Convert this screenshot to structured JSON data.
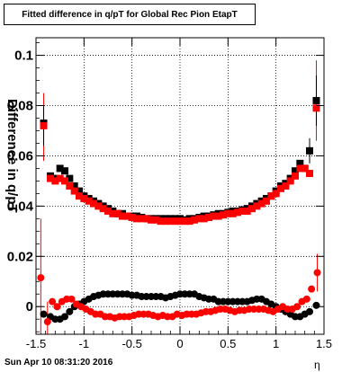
{
  "chart_data": {
    "type": "scatter",
    "title": "Fitted difference in q/pT for Global Rec Pion EtapT",
    "ylabel": "Difference in q/pT",
    "xlabel": "η",
    "xlim": [
      -1.5,
      1.5
    ],
    "ylim": [
      -0.011,
      0.107
    ],
    "grid": true,
    "x_ticks": [
      "-1.5",
      "-1",
      "-0.5",
      "0",
      "0.5",
      "1",
      "1.5"
    ],
    "y_ticks": [
      "0",
      "0.02",
      "0.04",
      "0.06",
      "0.08",
      "0.1"
    ],
    "series": [
      {
        "color": "#000000",
        "marker": "square",
        "points": [
          [
            -1.42,
            0.073
          ],
          [
            -1.35,
            0.052
          ],
          [
            -1.3,
            0.051
          ],
          [
            -1.25,
            0.055
          ],
          [
            -1.2,
            0.054
          ],
          [
            -1.15,
            0.051
          ],
          [
            -1.1,
            0.048
          ],
          [
            -1.05,
            0.046
          ],
          [
            -1.0,
            0.044
          ],
          [
            -0.95,
            0.043
          ],
          [
            -0.9,
            0.042
          ],
          [
            -0.85,
            0.041
          ],
          [
            -0.8,
            0.04
          ],
          [
            -0.75,
            0.039
          ],
          [
            -0.7,
            0.038
          ],
          [
            -0.65,
            0.037
          ],
          [
            -0.6,
            0.037
          ],
          [
            -0.55,
            0.036
          ],
          [
            -0.5,
            0.036
          ],
          [
            -0.45,
            0.036
          ],
          [
            -0.4,
            0.0355
          ],
          [
            -0.35,
            0.035
          ],
          [
            -0.3,
            0.035
          ],
          [
            -0.25,
            0.035
          ],
          [
            -0.2,
            0.035
          ],
          [
            -0.15,
            0.035
          ],
          [
            -0.1,
            0.035
          ],
          [
            -0.05,
            0.035
          ],
          [
            0.0,
            0.035
          ],
          [
            0.05,
            0.0345
          ],
          [
            0.1,
            0.035
          ],
          [
            0.15,
            0.035
          ],
          [
            0.2,
            0.0355
          ],
          [
            0.25,
            0.036
          ],
          [
            0.3,
            0.036
          ],
          [
            0.35,
            0.0365
          ],
          [
            0.4,
            0.037
          ],
          [
            0.45,
            0.037
          ],
          [
            0.5,
            0.0375
          ],
          [
            0.55,
            0.038
          ],
          [
            0.6,
            0.038
          ],
          [
            0.65,
            0.0385
          ],
          [
            0.7,
            0.039
          ],
          [
            0.75,
            0.04
          ],
          [
            0.8,
            0.041
          ],
          [
            0.85,
            0.042
          ],
          [
            0.9,
            0.043
          ],
          [
            0.95,
            0.044
          ],
          [
            1.0,
            0.046
          ],
          [
            1.05,
            0.048
          ],
          [
            1.1,
            0.049
          ],
          [
            1.15,
            0.051
          ],
          [
            1.2,
            0.054
          ],
          [
            1.25,
            0.057
          ],
          [
            1.3,
            0.055
          ],
          [
            1.35,
            0.062
          ],
          [
            1.42,
            0.082
          ]
        ]
      },
      {
        "color": "#ff0000",
        "marker": "square",
        "points": [
          [
            -1.42,
            0.072
          ],
          [
            -1.35,
            0.051
          ],
          [
            -1.3,
            0.05
          ],
          [
            -1.25,
            0.051
          ],
          [
            -1.2,
            0.05
          ],
          [
            -1.15,
            0.048
          ],
          [
            -1.1,
            0.046
          ],
          [
            -1.05,
            0.044
          ],
          [
            -1.0,
            0.043
          ],
          [
            -0.95,
            0.042
          ],
          [
            -0.9,
            0.041
          ],
          [
            -0.85,
            0.04
          ],
          [
            -0.8,
            0.039
          ],
          [
            -0.75,
            0.038
          ],
          [
            -0.7,
            0.037
          ],
          [
            -0.65,
            0.037
          ],
          [
            -0.6,
            0.036
          ],
          [
            -0.55,
            0.036
          ],
          [
            -0.5,
            0.0355
          ],
          [
            -0.45,
            0.035
          ],
          [
            -0.4,
            0.035
          ],
          [
            -0.35,
            0.035
          ],
          [
            -0.3,
            0.0345
          ],
          [
            -0.25,
            0.0345
          ],
          [
            -0.2,
            0.034
          ],
          [
            -0.15,
            0.034
          ],
          [
            -0.1,
            0.034
          ],
          [
            -0.05,
            0.034
          ],
          [
            0.0,
            0.034
          ],
          [
            0.05,
            0.034
          ],
          [
            0.1,
            0.034
          ],
          [
            0.15,
            0.0345
          ],
          [
            0.2,
            0.035
          ],
          [
            0.25,
            0.035
          ],
          [
            0.3,
            0.0355
          ],
          [
            0.35,
            0.036
          ],
          [
            0.4,
            0.036
          ],
          [
            0.45,
            0.0365
          ],
          [
            0.5,
            0.037
          ],
          [
            0.55,
            0.037
          ],
          [
            0.6,
            0.0375
          ],
          [
            0.65,
            0.038
          ],
          [
            0.7,
            0.038
          ],
          [
            0.75,
            0.039
          ],
          [
            0.8,
            0.04
          ],
          [
            0.85,
            0.041
          ],
          [
            0.9,
            0.042
          ],
          [
            0.95,
            0.044
          ],
          [
            1.0,
            0.045
          ],
          [
            1.05,
            0.047
          ],
          [
            1.1,
            0.048
          ],
          [
            1.15,
            0.05
          ],
          [
            1.2,
            0.052
          ],
          [
            1.25,
            0.055
          ],
          [
            1.3,
            0.055
          ],
          [
            1.35,
            0.053
          ],
          [
            1.42,
            0.079
          ]
        ]
      },
      {
        "color": "#000000",
        "marker": "circle",
        "points": [
          [
            -1.42,
            -0.003
          ],
          [
            -1.35,
            -0.004
          ],
          [
            -1.3,
            -0.005
          ],
          [
            -1.25,
            -0.005
          ],
          [
            -1.2,
            -0.004
          ],
          [
            -1.15,
            -0.002
          ],
          [
            -1.1,
            0.0
          ],
          [
            -1.05,
            0.001
          ],
          [
            -1.0,
            0.002
          ],
          [
            -0.95,
            0.003
          ],
          [
            -0.9,
            0.004
          ],
          [
            -0.85,
            0.0045
          ],
          [
            -0.8,
            0.005
          ],
          [
            -0.75,
            0.005
          ],
          [
            -0.7,
            0.005
          ],
          [
            -0.65,
            0.005
          ],
          [
            -0.6,
            0.005
          ],
          [
            -0.55,
            0.005
          ],
          [
            -0.5,
            0.0045
          ],
          [
            -0.45,
            0.0045
          ],
          [
            -0.4,
            0.004
          ],
          [
            -0.35,
            0.004
          ],
          [
            -0.3,
            0.004
          ],
          [
            -0.25,
            0.004
          ],
          [
            -0.2,
            0.004
          ],
          [
            -0.15,
            0.0035
          ],
          [
            -0.1,
            0.004
          ],
          [
            -0.05,
            0.0045
          ],
          [
            0.0,
            0.005
          ],
          [
            0.05,
            0.005
          ],
          [
            0.1,
            0.005
          ],
          [
            0.15,
            0.005
          ],
          [
            0.2,
            0.004
          ],
          [
            0.25,
            0.0035
          ],
          [
            0.3,
            0.003
          ],
          [
            0.35,
            0.003
          ],
          [
            0.4,
            0.002
          ],
          [
            0.45,
            0.002
          ],
          [
            0.5,
            0.002
          ],
          [
            0.55,
            0.002
          ],
          [
            0.6,
            0.002
          ],
          [
            0.65,
            0.002
          ],
          [
            0.7,
            0.002
          ],
          [
            0.75,
            0.0025
          ],
          [
            0.8,
            0.003
          ],
          [
            0.85,
            0.003
          ],
          [
            0.9,
            0.002
          ],
          [
            0.95,
            0.001
          ],
          [
            1.0,
            0.0
          ],
          [
            1.05,
            -0.001
          ],
          [
            1.1,
            -0.002
          ],
          [
            1.15,
            -0.003
          ],
          [
            1.2,
            -0.004
          ],
          [
            1.25,
            -0.004
          ],
          [
            1.3,
            -0.003
          ],
          [
            1.35,
            -0.002
          ],
          [
            1.42,
            0.0005
          ]
        ]
      },
      {
        "color": "#ff0000",
        "marker": "circle",
        "points": [
          [
            -1.45,
            0.0115
          ],
          [
            -1.38,
            -0.006
          ],
          [
            -1.33,
            0.002
          ],
          [
            -1.28,
            0.0
          ],
          [
            -1.23,
            0.002
          ],
          [
            -1.18,
            0.003
          ],
          [
            -1.13,
            0.003
          ],
          [
            -1.08,
            0.001
          ],
          [
            -1.03,
            0.0
          ],
          [
            -0.98,
            -0.001
          ],
          [
            -0.93,
            -0.002
          ],
          [
            -0.88,
            -0.003
          ],
          [
            -0.83,
            -0.003
          ],
          [
            -0.78,
            -0.004
          ],
          [
            -0.73,
            -0.004
          ],
          [
            -0.68,
            -0.0045
          ],
          [
            -0.63,
            -0.004
          ],
          [
            -0.58,
            -0.004
          ],
          [
            -0.53,
            -0.004
          ],
          [
            -0.48,
            -0.0035
          ],
          [
            -0.43,
            -0.003
          ],
          [
            -0.38,
            -0.003
          ],
          [
            -0.33,
            -0.003
          ],
          [
            -0.28,
            -0.0035
          ],
          [
            -0.23,
            -0.004
          ],
          [
            -0.18,
            -0.0035
          ],
          [
            -0.13,
            -0.004
          ],
          [
            -0.08,
            -0.004
          ],
          [
            -0.03,
            -0.003
          ],
          [
            0.02,
            -0.0035
          ],
          [
            0.07,
            -0.003
          ],
          [
            0.12,
            -0.003
          ],
          [
            0.17,
            -0.003
          ],
          [
            0.22,
            -0.0025
          ],
          [
            0.27,
            -0.002
          ],
          [
            0.32,
            -0.002
          ],
          [
            0.37,
            -0.0015
          ],
          [
            0.42,
            -0.001
          ],
          [
            0.47,
            -0.001
          ],
          [
            0.52,
            -0.0015
          ],
          [
            0.57,
            -0.002
          ],
          [
            0.62,
            -0.0015
          ],
          [
            0.67,
            -0.0015
          ],
          [
            0.72,
            -0.001
          ],
          [
            0.77,
            -0.001
          ],
          [
            0.82,
            -0.001
          ],
          [
            0.87,
            -0.001
          ],
          [
            0.92,
            -0.0015
          ],
          [
            0.97,
            -0.002
          ],
          [
            1.02,
            -0.001
          ],
          [
            1.07,
            0.0
          ],
          [
            1.12,
            -0.001
          ],
          [
            1.17,
            -0.001
          ],
          [
            1.22,
            0.0
          ],
          [
            1.27,
            0.002
          ],
          [
            1.32,
            0.003
          ],
          [
            1.37,
            0.007
          ],
          [
            1.43,
            0.0135
          ]
        ]
      }
    ],
    "error_bars": [
      {
        "color": "#ff0000",
        "x": -1.45,
        "low": -0.011,
        "high": 0.035
      },
      {
        "color": "#ff0000",
        "x": -1.42,
        "low": 0.058,
        "high": 0.085
      },
      {
        "color": "#000000",
        "x": -1.42,
        "low": 0.064,
        "high": 0.08
      },
      {
        "color": "#ff0000",
        "x": -1.38,
        "low": -0.011,
        "high": 0.002
      },
      {
        "color": "#ff0000",
        "x": 1.42,
        "low": 0.066,
        "high": 0.098
      },
      {
        "color": "#000000",
        "x": 1.42,
        "low": 0.072,
        "high": 0.092
      },
      {
        "color": "#ff0000",
        "x": 1.43,
        "low": 0.006,
        "high": 0.021
      },
      {
        "color": "#000000",
        "x": 1.35,
        "low": 0.057,
        "high": 0.067
      }
    ]
  },
  "footer": {
    "timestamp": "Sun Apr 10 08:31:20 2016"
  }
}
